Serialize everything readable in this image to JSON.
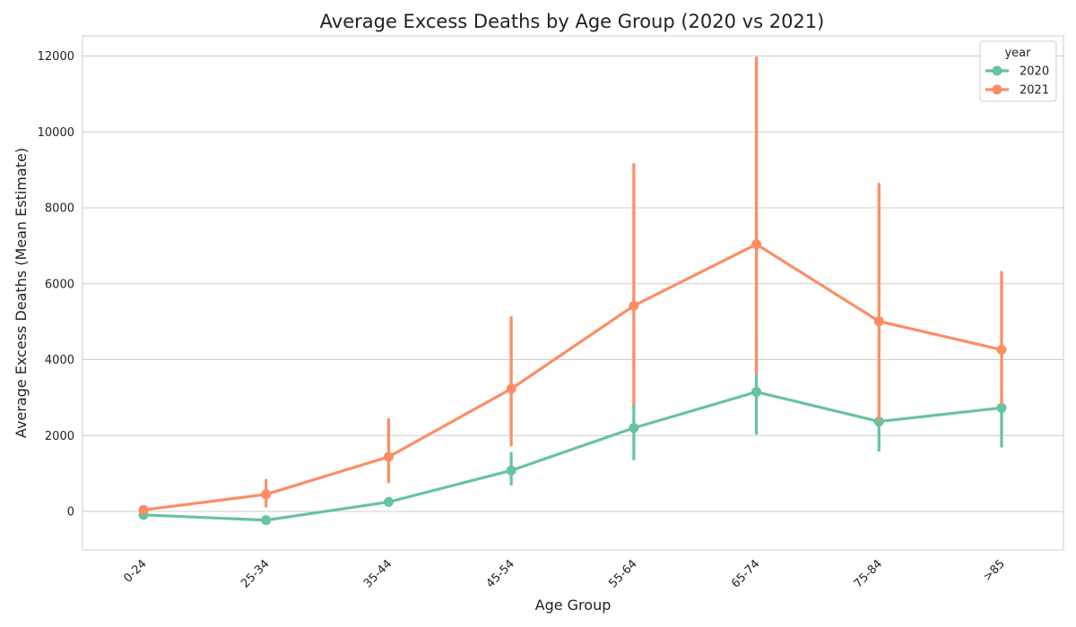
{
  "chart_data": {
    "type": "line",
    "title": "Average Excess Deaths by Age Group (2020 vs 2021)",
    "xlabel": "Age Group",
    "ylabel": "Average Excess Deaths (Mean Estimate)",
    "categories": [
      "0-24",
      "25-34",
      "35-44",
      "45-54",
      "55-64",
      "65-74",
      "75-84",
      ">85"
    ],
    "ylim": [
      -1050,
      12550
    ],
    "yticks": [
      0,
      2000,
      4000,
      6000,
      8000,
      10000,
      12000
    ],
    "grid": true,
    "legend": {
      "title": "year",
      "placement": "top-right"
    },
    "series": [
      {
        "name": "2020",
        "color": "#66c2a5",
        "values": [
          -90,
          -230,
          250,
          1080,
          2200,
          3150,
          2370,
          2730
        ],
        "err_low": [
          -130,
          -320,
          160,
          720,
          1380,
          2060,
          1610,
          1720
        ],
        "err_high": [
          -50,
          -140,
          350,
          1530,
          2820,
          4680,
          2480,
          3160
        ]
      },
      {
        "name": "2021",
        "color": "#fc8d62",
        "values": [
          40,
          450,
          1440,
          3230,
          5420,
          7040,
          5010,
          4260
        ],
        "err_low": [
          -20,
          140,
          780,
          1750,
          2850,
          3640,
          2410,
          2850
        ],
        "err_high": [
          90,
          820,
          2420,
          5110,
          9140,
          11950,
          8620,
          6300
        ]
      }
    ]
  }
}
